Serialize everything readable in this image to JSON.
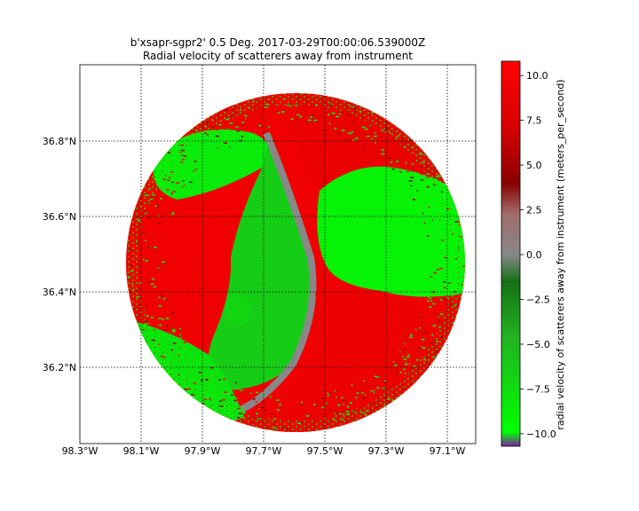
{
  "chart_data": {
    "type": "heatmap",
    "title_line1": "b'xsapr-sgpr2' 0.5 Deg. 2017-03-29T00:00:06.539000Z",
    "title_line2": "Radial velocity of scatterers away from instrument",
    "map": {
      "lon_range": [
        -98.3,
        -97.0
      ],
      "lat_range": [
        36.0,
        37.0
      ],
      "radar_center": [
        -97.6,
        36.5
      ],
      "range_ring": "circular PPI sweep"
    },
    "x_ticks": [
      {
        "value": -98.3,
        "label": "98.3°W"
      },
      {
        "value": -98.1,
        "label": "98.1°W"
      },
      {
        "value": -97.9,
        "label": "97.9°W"
      },
      {
        "value": -97.7,
        "label": "97.7°W"
      },
      {
        "value": -97.5,
        "label": "97.5°W"
      },
      {
        "value": -97.3,
        "label": "97.3°W"
      },
      {
        "value": -97.1,
        "label": "97.1°W"
      }
    ],
    "y_ticks": [
      {
        "value": 36.2,
        "label": "36.2°N"
      },
      {
        "value": 36.4,
        "label": "36.4°N"
      },
      {
        "value": 36.6,
        "label": "36.6°N"
      },
      {
        "value": 36.8,
        "label": "36.8°N"
      }
    ],
    "grid": true,
    "colorbar": {
      "label": "radial velocity of scatterers away from instrument (meters_per_second)",
      "vmin": -10.7,
      "vmax": 10.8,
      "ticks": [
        {
          "value": 10.0,
          "label": "10.0"
        },
        {
          "value": 7.5,
          "label": "7.5"
        },
        {
          "value": 5.0,
          "label": "5.0"
        },
        {
          "value": 2.5,
          "label": "2.5"
        },
        {
          "value": 0.0,
          "label": "0.0"
        },
        {
          "value": -2.5,
          "label": "−2.5"
        },
        {
          "value": -5.0,
          "label": "−5.0"
        },
        {
          "value": -7.5,
          "label": "−7.5"
        },
        {
          "value": -10.0,
          "label": "−10.0"
        }
      ],
      "stops": [
        {
          "value": -10.7,
          "color": "#7a1fa2"
        },
        {
          "value": -9.9,
          "color": "#00ff00"
        },
        {
          "value": -4.5,
          "color": "#22b022"
        },
        {
          "value": -1.5,
          "color": "#157015"
        },
        {
          "value": 0.0,
          "color": "#888888"
        },
        {
          "value": 2.3,
          "color": "#a06a6a"
        },
        {
          "value": 4.0,
          "color": "#8a0000"
        },
        {
          "value": 7.0,
          "color": "#d40000"
        },
        {
          "value": 10.8,
          "color": "#ff0000"
        }
      ]
    },
    "regions": [
      {
        "name": "outbound-west",
        "velocity": 9.5
      },
      {
        "name": "inbound-north-lobe",
        "velocity": -8.5
      },
      {
        "name": "inbound-central-strip",
        "velocity": -6.5
      },
      {
        "name": "zero-velocity-line",
        "velocity": 0.0
      },
      {
        "name": "outbound-northeast",
        "velocity": 9.0
      },
      {
        "name": "inbound-east",
        "velocity": -9.0
      },
      {
        "name": "outbound-southeast",
        "velocity": 9.2
      },
      {
        "name": "inbound-southwest",
        "velocity": -8.0
      },
      {
        "name": "inbound-small-patch",
        "velocity": -7.0
      },
      {
        "name": "noisy-edge-speckle",
        "velocity": 8.0
      }
    ]
  }
}
